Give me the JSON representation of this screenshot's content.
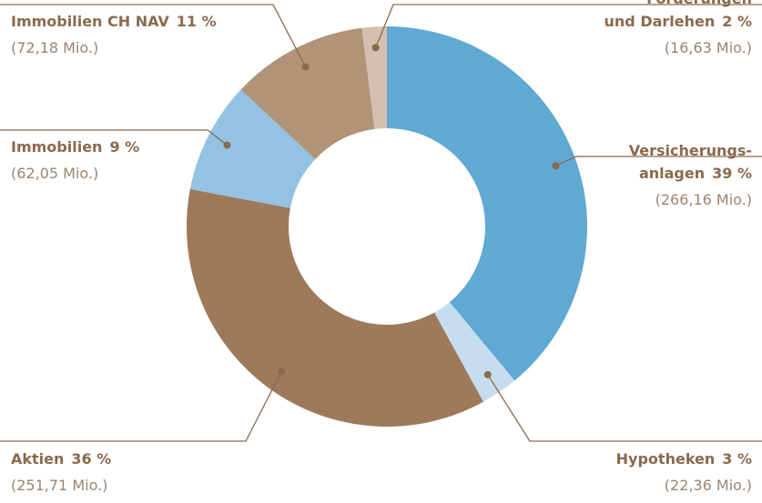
{
  "chart_data": {
    "type": "donut",
    "categories": [
      "Versicherungs-\nanlagen",
      "Hypotheken",
      "Aktien",
      "Immobilien",
      "Immobilien CH NAV",
      "Forderungen\nund Darlehen"
    ],
    "values": [
      39,
      3,
      36,
      9,
      11,
      2
    ],
    "value_labels": [
      "39 %",
      "3 %",
      "36 %",
      "9 %",
      "11 %",
      "2 %"
    ],
    "amounts": [
      "(266,16 Mio.)",
      "(22,36 Mio.)",
      "(251,71 Mio.)",
      "(62,05 Mio.)",
      "(72,18 Mio.)",
      "(16,63 Mio.)"
    ],
    "colors": [
      "#5fa9d3",
      "#c6ddef",
      "#9e7a5b",
      "#93c2e3",
      "#b19377",
      "#d5c0af"
    ]
  }
}
